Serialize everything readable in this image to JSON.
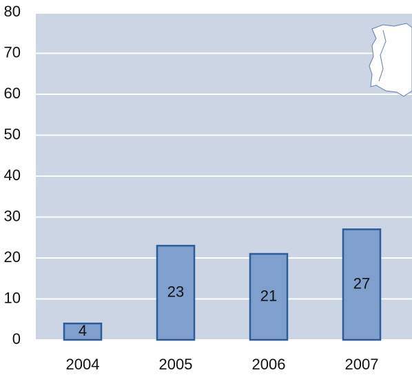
{
  "chart_data": {
    "type": "bar",
    "categories": [
      "2004",
      "2005",
      "2006",
      "2007"
    ],
    "values": [
      4,
      23,
      21,
      27
    ],
    "color": "#7f9fcc",
    "edge_color": "#2b5d9b",
    "ylim": [
      0,
      80
    ],
    "yticks": [
      0,
      10,
      20,
      30,
      40,
      50,
      60,
      70,
      80
    ],
    "grid": true
  }
}
